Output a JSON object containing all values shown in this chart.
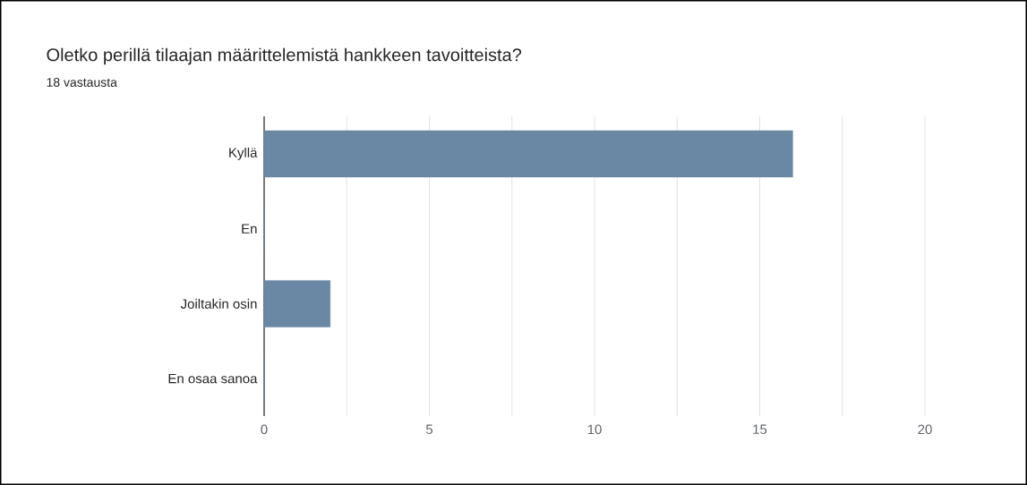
{
  "chart_data": {
    "type": "bar",
    "orientation": "horizontal",
    "title": "Oletko perillä tilaajan määrittelemistä hankkeen tavoitteista?",
    "subtitle": "18 vastausta",
    "categories": [
      "Kyllä",
      "En",
      "Joiltakin osin",
      "En osaa sanoa"
    ],
    "values": [
      16,
      0,
      2,
      0
    ],
    "color": "#6a87a3",
    "xlim": [
      0,
      20
    ],
    "xticks": [
      0,
      {
        "value": 2.5,
        "label": null
      },
      5,
      {
        "value": 7.5,
        "label": null
      },
      10,
      {
        "value": 12.5,
        "label": null
      },
      15,
      {
        "value": 17.5,
        "label": null
      },
      20
    ],
    "grid": "x"
  }
}
